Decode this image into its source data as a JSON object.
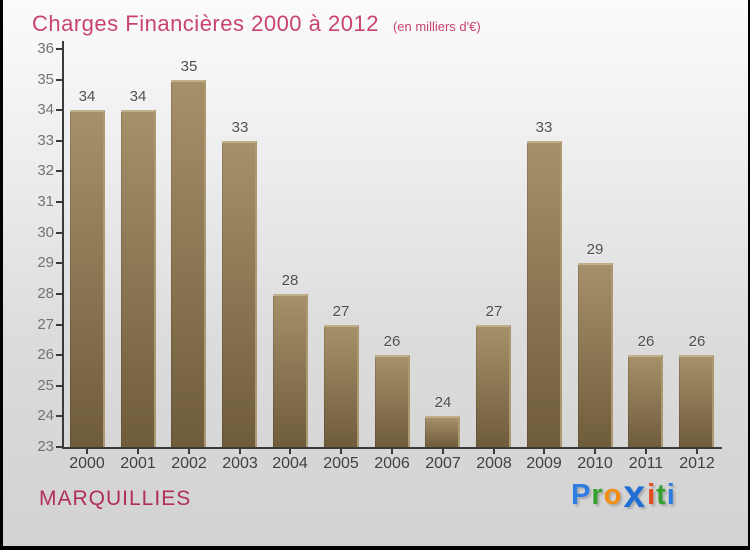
{
  "title": {
    "text": "Charges Financières 2000 à 2012",
    "subtitle": "(en milliers d'€)",
    "color": "#c9436f"
  },
  "footer": {
    "commune": "MARQUILLIES",
    "commune_color": "#b12d5e",
    "logo": {
      "name": "Proxiti",
      "letters": [
        {
          "ch": "P",
          "color": "#2e7de0",
          "big": false
        },
        {
          "ch": "r",
          "color": "#35a02e",
          "big": false
        },
        {
          "ch": "o",
          "color": "#f28d11",
          "big": false
        },
        {
          "ch": "x",
          "color": "#1f6fd6",
          "big": true
        },
        {
          "ch": "i",
          "color": "#e84a1d",
          "big": false
        },
        {
          "ch": "t",
          "color": "#35a02e",
          "big": false
        },
        {
          "ch": "i",
          "color": "#2e7de0",
          "big": false
        }
      ]
    }
  },
  "chart_data": {
    "type": "bar",
    "title": "Charges Financières 2000 à 2012",
    "subtitle": "(en milliers d'€)",
    "categories": [
      "2000",
      "2001",
      "2002",
      "2003",
      "2004",
      "2005",
      "2006",
      "2007",
      "2008",
      "2009",
      "2010",
      "2011",
      "2012"
    ],
    "values": [
      34,
      34,
      35,
      33,
      28,
      27,
      26,
      24,
      27,
      33,
      29,
      26,
      26
    ],
    "xlabel": "",
    "ylabel": "",
    "ylim": [
      23,
      36
    ],
    "ytick_step": 1,
    "grid": false,
    "legend": false,
    "value_labels_shown": true,
    "bar_gradient_top": "#a6906a",
    "bar_gradient_bottom": "#6f5c3b",
    "bar_edge_highlight": "#c0b08a",
    "axis_color": "#3a3a3a",
    "y_label_color": "#737373",
    "x_label_color": "#414141",
    "value_label_color": "#4f4f4f",
    "background_top": "#fbfbfb",
    "background_bottom": "#d2d2d2"
  }
}
